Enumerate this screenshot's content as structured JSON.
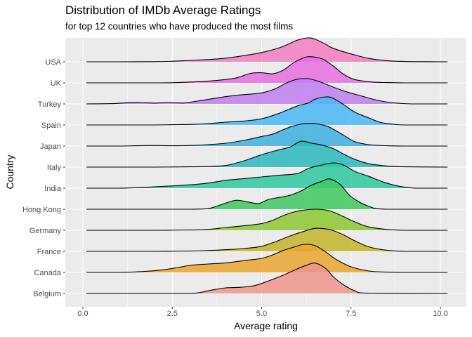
{
  "chart_data": {
    "type": "ridgeline",
    "title": "Distribution of IMDb Average Ratings",
    "subtitle": "for top 12 countries who have produced the most films",
    "xlabel": "Average rating",
    "ylabel": "Country",
    "xlim": [
      -0.6,
      10.8
    ],
    "x_ticks": [
      0.0,
      2.5,
      5.0,
      7.5,
      10.0
    ],
    "x_tick_labels": [
      "0.0",
      "2.5",
      "5.0",
      "7.5",
      "10.0"
    ],
    "grid": true,
    "legend": "none",
    "series": [
      {
        "name": "USA",
        "color": "#F27DC1",
        "x": [
          0.1,
          1.0,
          2.0,
          2.5,
          3.0,
          3.5,
          4.0,
          4.5,
          5.0,
          5.5,
          5.8,
          6.0,
          6.3,
          6.5,
          6.8,
          7.0,
          7.5,
          8.0,
          8.5,
          9.0,
          9.5,
          10.2
        ],
        "density": [
          0.0,
          0.0,
          0.005,
          0.02,
          0.05,
          0.08,
          0.13,
          0.22,
          0.33,
          0.5,
          0.66,
          0.77,
          0.85,
          0.8,
          0.62,
          0.48,
          0.28,
          0.12,
          0.04,
          0.012,
          0.004,
          0.0
        ]
      },
      {
        "name": "UK",
        "color": "#E66FE0",
        "x": [
          0.1,
          1.0,
          2.0,
          2.5,
          3.0,
          3.5,
          4.0,
          4.3,
          4.7,
          5.0,
          5.3,
          5.6,
          5.9,
          6.2,
          6.4,
          6.7,
          7.0,
          7.3,
          7.6,
          8.0,
          8.5,
          9.0,
          10.2
        ],
        "density": [
          0.0,
          0.0,
          0.0,
          0.005,
          0.03,
          0.06,
          0.12,
          0.18,
          0.34,
          0.36,
          0.32,
          0.45,
          0.72,
          0.9,
          0.93,
          0.85,
          0.6,
          0.3,
          0.12,
          0.04,
          0.01,
          0.0,
          0.0
        ]
      },
      {
        "name": "Turkey",
        "color": "#C07FF0",
        "x": [
          0.1,
          0.8,
          1.2,
          1.6,
          2.0,
          2.4,
          2.8,
          3.2,
          3.6,
          4.0,
          4.4,
          4.8,
          5.1,
          5.4,
          5.7,
          6.0,
          6.3,
          6.6,
          7.0,
          7.4,
          7.8,
          8.2,
          8.6,
          9.2,
          10.2
        ],
        "density": [
          0.0,
          0.01,
          0.04,
          0.05,
          0.03,
          0.05,
          0.03,
          0.1,
          0.18,
          0.26,
          0.32,
          0.36,
          0.42,
          0.55,
          0.75,
          0.88,
          0.9,
          0.8,
          0.6,
          0.42,
          0.28,
          0.14,
          0.05,
          0.0,
          0.0
        ]
      },
      {
        "name": "Spain",
        "color": "#49B8F2",
        "x": [
          0.1,
          1.0,
          2.0,
          2.5,
          3.0,
          3.5,
          4.0,
          4.5,
          5.0,
          5.5,
          6.0,
          6.3,
          6.5,
          6.8,
          7.0,
          7.3,
          7.6,
          8.0,
          8.3,
          8.6,
          9.0,
          10.2
        ],
        "density": [
          0.0,
          0.0,
          0.0,
          0.01,
          0.02,
          0.05,
          0.1,
          0.14,
          0.22,
          0.42,
          0.68,
          0.78,
          0.92,
          1.0,
          0.95,
          0.72,
          0.46,
          0.25,
          0.1,
          0.04,
          0.0,
          0.0
        ]
      },
      {
        "name": "Japan",
        "color": "#3DB0E0",
        "x": [
          0.1,
          1.0,
          1.5,
          2.0,
          2.5,
          3.0,
          3.5,
          4.0,
          4.5,
          5.0,
          5.3,
          5.6,
          5.9,
          6.2,
          6.5,
          6.8,
          7.0,
          7.3,
          7.6,
          8.0,
          8.5,
          9.0,
          10.2
        ],
        "density": [
          0.0,
          0.0,
          0.01,
          0.02,
          0.01,
          0.02,
          0.05,
          0.1,
          0.2,
          0.34,
          0.42,
          0.58,
          0.72,
          0.8,
          0.8,
          0.72,
          0.6,
          0.38,
          0.16,
          0.05,
          0.01,
          0.0,
          0.0
        ]
      },
      {
        "name": "Italy",
        "color": "#2AB8BC",
        "x": [
          0.1,
          1.0,
          2.0,
          2.5,
          3.0,
          3.5,
          4.0,
          4.5,
          5.0,
          5.5,
          5.8,
          6.1,
          6.4,
          6.7,
          7.0,
          7.3,
          7.6,
          8.0,
          8.5,
          9.0,
          10.2
        ],
        "density": [
          0.0,
          0.0,
          0.0,
          0.005,
          0.01,
          0.02,
          0.06,
          0.22,
          0.44,
          0.62,
          0.72,
          0.92,
          0.85,
          0.78,
          0.66,
          0.46,
          0.28,
          0.12,
          0.04,
          0.01,
          0.0
        ]
      },
      {
        "name": "India",
        "color": "#2DC8A0",
        "x": [
          0.1,
          1.0,
          1.6,
          2.0,
          2.5,
          3.0,
          3.5,
          4.0,
          4.5,
          5.0,
          5.5,
          6.0,
          6.3,
          6.6,
          7.0,
          7.3,
          7.6,
          8.0,
          8.4,
          8.8,
          9.3,
          10.2
        ],
        "density": [
          0.0,
          0.0,
          0.02,
          0.05,
          0.08,
          0.12,
          0.18,
          0.28,
          0.34,
          0.4,
          0.46,
          0.52,
          0.7,
          0.8,
          0.9,
          0.82,
          0.6,
          0.42,
          0.22,
          0.08,
          0.0,
          0.0
        ]
      },
      {
        "name": "Hong Kong",
        "color": "#3EC85E",
        "x": [
          0.1,
          2.0,
          3.0,
          3.5,
          4.0,
          4.3,
          4.6,
          4.9,
          5.2,
          5.5,
          5.8,
          6.1,
          6.4,
          6.7,
          6.9,
          7.2,
          7.5,
          8.0,
          8.5,
          10.2
        ],
        "density": [
          0.0,
          0.0,
          0.0,
          0.02,
          0.22,
          0.32,
          0.26,
          0.2,
          0.35,
          0.42,
          0.5,
          0.65,
          0.86,
          1.0,
          1.08,
          0.88,
          0.45,
          0.1,
          0.0,
          0.0
        ]
      },
      {
        "name": "Germany",
        "color": "#8CC832",
        "x": [
          0.1,
          1.0,
          2.0,
          3.0,
          3.5,
          4.0,
          4.5,
          5.0,
          5.3,
          5.6,
          5.9,
          6.2,
          6.5,
          6.8,
          7.0,
          7.3,
          7.6,
          8.0,
          8.5,
          9.0,
          10.2
        ],
        "density": [
          0.0,
          0.0,
          0.0,
          0.01,
          0.03,
          0.1,
          0.16,
          0.24,
          0.35,
          0.52,
          0.65,
          0.72,
          0.75,
          0.72,
          0.65,
          0.48,
          0.3,
          0.12,
          0.03,
          0.0,
          0.0
        ]
      },
      {
        "name": "France",
        "color": "#C4B52A",
        "x": [
          0.1,
          1.0,
          2.0,
          3.0,
          3.5,
          4.0,
          4.5,
          5.0,
          5.4,
          5.8,
          6.2,
          6.5,
          6.8,
          7.0,
          7.3,
          7.6,
          8.0,
          8.5,
          9.0,
          10.2
        ],
        "density": [
          0.0,
          0.0,
          0.0,
          0.01,
          0.03,
          0.06,
          0.1,
          0.18,
          0.35,
          0.55,
          0.72,
          0.82,
          0.8,
          0.74,
          0.58,
          0.38,
          0.16,
          0.04,
          0.0,
          0.0
        ]
      },
      {
        "name": "Canada",
        "color": "#E8A733",
        "x": [
          0.1,
          1.0,
          1.5,
          2.0,
          2.5,
          3.0,
          3.5,
          4.0,
          4.5,
          5.0,
          5.3,
          5.6,
          5.9,
          6.2,
          6.5,
          6.8,
          7.1,
          7.5,
          8.0,
          8.5,
          9.0,
          10.2
        ],
        "density": [
          0.0,
          0.0,
          0.02,
          0.06,
          0.14,
          0.25,
          0.3,
          0.34,
          0.42,
          0.5,
          0.62,
          0.78,
          0.9,
          1.0,
          0.95,
          0.72,
          0.45,
          0.2,
          0.05,
          0.01,
          0.0,
          0.0
        ]
      },
      {
        "name": "Belgium",
        "color": "#F0948E",
        "x": [
          0.1,
          2.0,
          3.0,
          3.3,
          3.6,
          4.0,
          4.4,
          4.8,
          5.2,
          5.6,
          5.9,
          6.2,
          6.5,
          6.8,
          7.0,
          7.3,
          7.6,
          8.0,
          10.2
        ],
        "density": [
          0.0,
          0.0,
          0.0,
          0.04,
          0.12,
          0.2,
          0.22,
          0.28,
          0.45,
          0.65,
          0.82,
          0.98,
          1.08,
          0.88,
          0.6,
          0.3,
          0.1,
          0.01,
          0.0
        ]
      }
    ]
  }
}
